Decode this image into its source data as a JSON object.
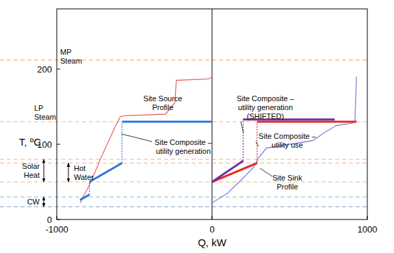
{
  "chart_data": {
    "type": "line",
    "x_label": "Q, kW",
    "y_label": "T, ºC",
    "xlim": [
      -1000,
      1000
    ],
    "ylim": [
      0,
      280
    ],
    "xticks": [
      -1000,
      0,
      1000
    ],
    "yticks": [
      0,
      100,
      200
    ],
    "series": [
      {
        "color": "#e86a6a",
        "line_style": "solid",
        "x": [
          -850,
          -780,
          -720,
          -620,
          -590,
          -560,
          -300,
          -240,
          -230,
          -20,
          0
        ],
        "values": [
          22,
          50,
          80,
          125,
          137,
          138,
          140,
          155,
          185,
          187,
          190
        ]
      },
      {
        "color": "#2e75d6",
        "line_style": "thick",
        "x": [
          -850,
          -790,
          -790,
          -790,
          -580,
          -580,
          -580,
          0
        ],
        "values": [
          26,
          33,
          null,
          50,
          75,
          null,
          130,
          130
        ]
      },
      {
        "color": "#2e75d6",
        "line_style": "dotted",
        "x": [
          -790,
          -790,
          -790,
          -580,
          -580
        ],
        "values": [
          33,
          50,
          null,
          75,
          130
        ]
      },
      {
        "color": "#8b7fd6",
        "line_style": "solid",
        "x": [
          0,
          100,
          200,
          270,
          300,
          350,
          500,
          650,
          720,
          800,
          900,
          920,
          930
        ],
        "values": [
          22,
          35,
          55,
          70,
          82,
          95,
          100,
          105,
          115,
          125,
          128,
          130,
          190
        ]
      },
      {
        "color": "#e02a2a",
        "line_style": "thick",
        "x": [
          0,
          290,
          290,
          290,
          930
        ],
        "values": [
          50,
          75,
          null,
          130,
          130
        ]
      },
      {
        "color": "#e02a2a",
        "line_style": "dotted",
        "x": [
          290,
          290
        ],
        "values": [
          75,
          130
        ]
      },
      {
        "color": "#7030a0",
        "line_style": "thick",
        "x": [
          0,
          200,
          200,
          200,
          790
        ],
        "values": [
          50,
          78,
          null,
          133,
          133
        ]
      },
      {
        "color": "#7030a0",
        "line_style": "dotted",
        "x": [
          200,
          200
        ],
        "values": [
          78,
          133
        ]
      }
    ],
    "hlines": [
      {
        "value": 212,
        "color": "#f4b183"
      },
      {
        "value": 130,
        "color": "#f4b183"
      },
      {
        "value": 80,
        "color": "#f4b183"
      },
      {
        "value": 75,
        "color": "#f4b183"
      },
      {
        "value": 50,
        "color": "#f4b183"
      },
      {
        "value": 30,
        "color": "#8fb4d9"
      },
      {
        "value": 17,
        "color": "#8fb4d9"
      }
    ],
    "vlines": [
      {
        "value": 0,
        "color": "#000000"
      }
    ],
    "ranges": [
      {
        "lines": [
          "Solar",
          "Heat"
        ],
        "from": 80,
        "to": 50
      },
      {
        "lines": [
          "Hot",
          "Water"
        ],
        "from": 75,
        "to": 50
      },
      {
        "lines": [
          "CW"
        ],
        "from": 30,
        "to": 17
      }
    ],
    "annotations": [
      {
        "lines": [
          "MP",
          "Steam"
        ]
      },
      {
        "lines": [
          "LP",
          "Steam"
        ]
      },
      {
        "lines": [
          "Site Source",
          "Profile"
        ]
      },
      {
        "lines": [
          "Site Composite –",
          "utility generation"
        ]
      },
      {
        "lines": [
          "Site Composite –",
          "utility generation",
          "(SHIFTED)"
        ]
      },
      {
        "lines": [
          "Site Composite –",
          "utility use"
        ]
      },
      {
        "lines": [
          "Site Sink",
          "Profile"
        ]
      }
    ]
  }
}
